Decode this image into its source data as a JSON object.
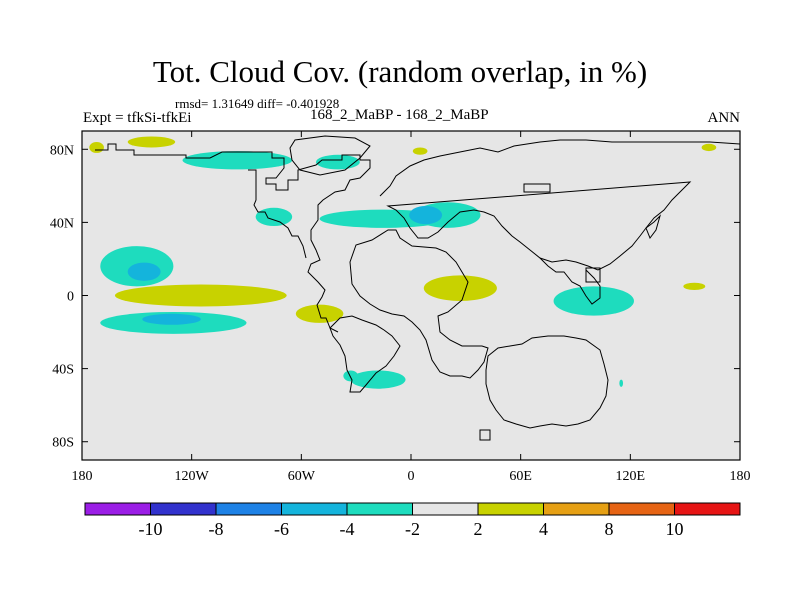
{
  "title": "Tot. Cloud Cov. (random overlap, in %)",
  "stats_text": "rmsd= 1.31649  diff= -0.401928",
  "left_label": "Expt = tfkSi-tfkEi",
  "center_label": "168_2_MaBP - 168_2_MaBP",
  "right_label": "ANN",
  "chart_data": {
    "type": "heatmap",
    "projection": "cylindrical-equidistant",
    "xlim": [
      -180,
      180
    ],
    "ylim": [
      -90,
      90
    ],
    "x_ticks": [
      {
        "value": -180,
        "label": "180"
      },
      {
        "value": -120,
        "label": "120W"
      },
      {
        "value": -60,
        "label": "60W"
      },
      {
        "value": 0,
        "label": "0"
      },
      {
        "value": 60,
        "label": "60E"
      },
      {
        "value": 120,
        "label": "120E"
      },
      {
        "value": 180,
        "label": "180"
      }
    ],
    "y_ticks": [
      {
        "value": 80,
        "label": "80N"
      },
      {
        "value": 40,
        "label": "40N"
      },
      {
        "value": 0,
        "label": "0"
      },
      {
        "value": -40,
        "label": "40S"
      },
      {
        "value": -80,
        "label": "80S"
      }
    ],
    "background_color": "#e6e6e6",
    "colorbar": {
      "labels": [
        "-10",
        "-8",
        "-6",
        "-4",
        "-2",
        "2",
        "4",
        "8",
        "10"
      ],
      "colors": [
        "#9b1ee6",
        "#3232cd",
        "#1e82e6",
        "#14b4dc",
        "#1edcbe",
        "#e6e6e6",
        "#c8d200",
        "#e6a014",
        "#e66414",
        "#e61414"
      ]
    },
    "anomaly_regions": [
      {
        "lon": -172,
        "lat": 81,
        "rx": 4,
        "ry": 3,
        "level": "2 to 4"
      },
      {
        "lon": -142,
        "lat": 84,
        "rx": 13,
        "ry": 3,
        "level": "2 to 4"
      },
      {
        "lon": -95,
        "lat": 74,
        "rx": 30,
        "ry": 5,
        "level": "-4 to -2"
      },
      {
        "lon": -40,
        "lat": 73,
        "rx": 12,
        "ry": 4,
        "level": "-4 to -2"
      },
      {
        "lon": -75,
        "lat": 43,
        "rx": 10,
        "ry": 5,
        "level": "-4 to -2"
      },
      {
        "lon": -15,
        "lat": 42,
        "rx": 35,
        "ry": 5,
        "level": "-4 to -2"
      },
      {
        "lon": 20,
        "lat": 44,
        "rx": 18,
        "ry": 7,
        "level": "-4 to -2"
      },
      {
        "lon": 8,
        "lat": 44,
        "rx": 9,
        "ry": 5,
        "level": "-6 to -4"
      },
      {
        "lon": 5,
        "lat": 79,
        "rx": 4,
        "ry": 2,
        "level": "2 to 4"
      },
      {
        "lon": -150,
        "lat": 16,
        "rx": 20,
        "ry": 11,
        "level": "-4 to -2"
      },
      {
        "lon": -146,
        "lat": 13,
        "rx": 9,
        "ry": 5,
        "level": "-6 to -4"
      },
      {
        "lon": -115,
        "lat": 0,
        "rx": 47,
        "ry": 6,
        "level": "2 to 4"
      },
      {
        "lon": -130,
        "lat": -15,
        "rx": 40,
        "ry": 6,
        "level": "-4 to -2"
      },
      {
        "lon": -131,
        "lat": -13,
        "rx": 16,
        "ry": 3,
        "level": "-6 to -4"
      },
      {
        "lon": -50,
        "lat": -10,
        "rx": 13,
        "ry": 5,
        "level": "2 to 4"
      },
      {
        "lon": 27,
        "lat": 4,
        "rx": 20,
        "ry": 7,
        "level": "2 to 4"
      },
      {
        "lon": 100,
        "lat": -3,
        "rx": 22,
        "ry": 8,
        "level": "-4 to -2"
      },
      {
        "lon": 155,
        "lat": 5,
        "rx": 6,
        "ry": 2,
        "level": "2 to 4"
      },
      {
        "lon": 163,
        "lat": 81,
        "rx": 4,
        "ry": 2,
        "level": "2 to 4"
      },
      {
        "lon": -18,
        "lat": -46,
        "rx": 15,
        "ry": 5,
        "level": "-4 to -2"
      },
      {
        "lon": -33,
        "lat": -44,
        "rx": 4,
        "ry": 3,
        "level": "-4 to -2"
      },
      {
        "lon": 115,
        "lat": -48,
        "rx": 1,
        "ry": 2,
        "level": "-4 to -2"
      }
    ]
  }
}
